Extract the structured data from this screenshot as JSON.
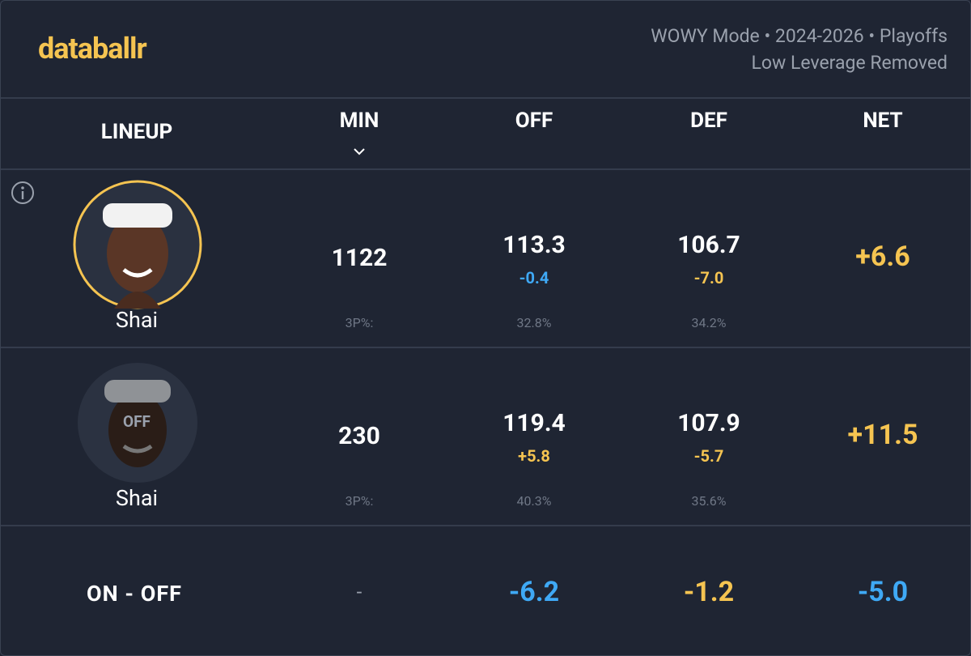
{
  "header": {
    "logo": "databallr",
    "mode_line": "WOWY Mode • 2024-2026 • Playoffs",
    "filter_line": "Low Leverage Removed"
  },
  "table": {
    "columns": [
      "LINEUP",
      "MIN",
      "OFF",
      "DEF",
      "NET"
    ],
    "rows": [
      {
        "player": "Shai",
        "min": "1122",
        "off": "113.3",
        "off_diff": "-0.4",
        "def": "106.7",
        "def_diff": "-7.0",
        "net": "+6.6",
        "three_label": "3P%:",
        "off_3p": "32.8%",
        "def_3p": "34.2%"
      },
      {
        "player": "Shai",
        "badge": "OFF",
        "min": "230",
        "off": "119.4",
        "off_diff": "+5.8",
        "def": "107.9",
        "def_diff": "-5.7",
        "net": "+11.5",
        "three_label": "3P%:",
        "off_3p": "40.3%",
        "def_3p": "35.6%"
      }
    ],
    "summary": {
      "label": "ON - OFF",
      "min": "-",
      "off": "-6.2",
      "def": "-1.2",
      "net": "-5.0"
    }
  }
}
